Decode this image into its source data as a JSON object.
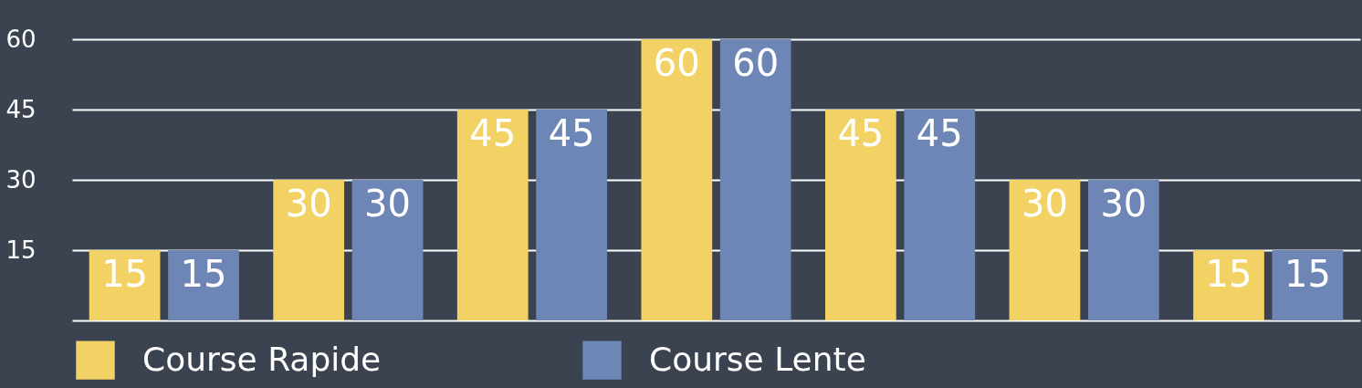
{
  "chart_data": {
    "type": "bar",
    "categories": [
      null,
      null,
      null,
      null,
      null,
      null,
      null
    ],
    "series": [
      {
        "name": "Course Rapide",
        "color": "#f2d264",
        "values": [
          15,
          30,
          45,
          60,
          45,
          30,
          15
        ]
      },
      {
        "name": "Course Lente",
        "color": "#6d86b6",
        "values": [
          15,
          30,
          45,
          60,
          45,
          30,
          15
        ]
      }
    ],
    "ylim": [
      0,
      60
    ],
    "yticks": [
      15,
      30,
      45,
      60
    ],
    "grid": "y",
    "legend": "bottom",
    "data_labels": true,
    "tick_labels": "y"
  }
}
